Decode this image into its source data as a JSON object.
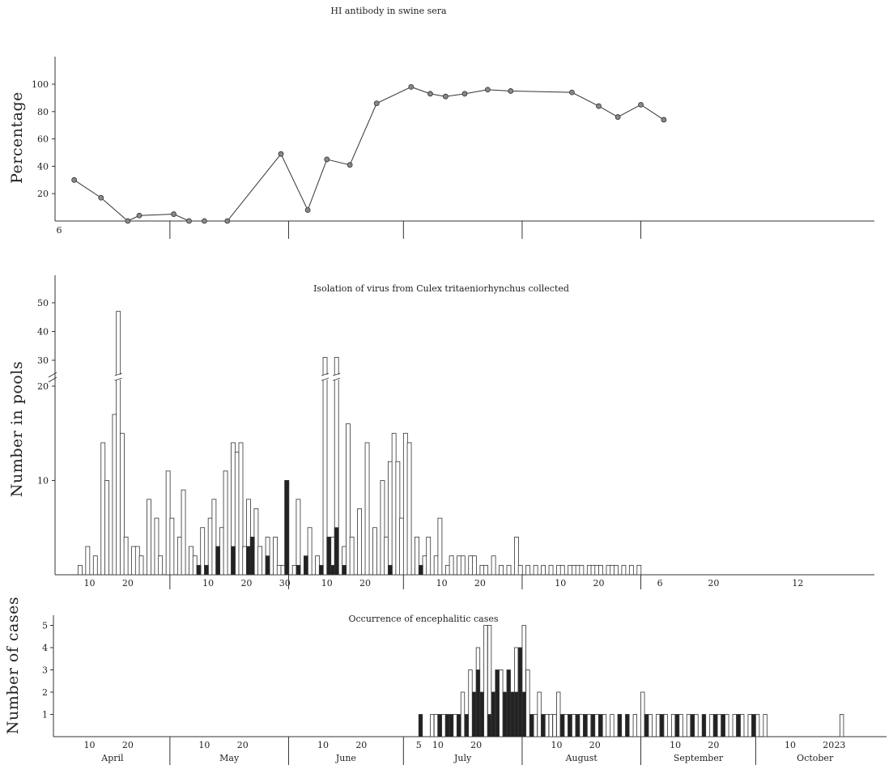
{
  "chart_data": [
    {
      "type": "line",
      "title": "HI antibody in swine sera",
      "ylabel": "Percentage",
      "ylim": [
        0,
        110
      ],
      "yticks": [
        "20",
        "40",
        "60",
        "80",
        "100"
      ],
      "x_start_label": "6",
      "x_day_of_year": [
        96,
        103,
        110,
        113,
        122,
        126,
        130,
        136,
        150,
        157,
        162,
        168,
        175,
        184,
        189,
        193,
        198,
        204,
        210,
        226,
        233,
        238,
        244,
        250
      ],
      "values": [
        30,
        17,
        0,
        4,
        5,
        0,
        0,
        0,
        49,
        8,
        45,
        41,
        86,
        98,
        93,
        91,
        93,
        96,
        95,
        94,
        84,
        76,
        85,
        74
      ],
      "grid": false
    },
    {
      "type": "bar",
      "title": "Isolation of virus from Culex tritaeniorhynchus collected",
      "ylabel": "Number in pools",
      "yticks": [
        "10",
        "20",
        "30",
        "40",
        "50"
      ],
      "axis_break": true,
      "x_tick_labels": [
        "10",
        "20",
        "10",
        "20",
        "30",
        "10",
        "20",
        "10",
        "20",
        "10",
        "20",
        "6",
        "20",
        "12"
      ],
      "series": [
        {
          "name": "",
          "color": "#ffffff",
          "day": [
            97,
            99,
            101,
            103,
            104,
            106,
            107,
            108,
            109,
            111,
            112,
            113,
            115,
            117,
            118,
            120,
            121,
            123,
            124,
            126,
            127,
            129,
            131,
            132,
            134,
            135,
            137,
            138,
            139,
            140,
            141,
            143,
            144,
            146,
            148,
            149,
            150,
            151,
            153,
            154,
            156,
            157,
            159,
            161,
            163,
            164,
            166,
            167,
            168,
            170,
            172,
            174,
            176,
            177,
            178,
            179,
            180,
            181,
            182,
            183,
            185,
            187,
            188,
            190,
            191,
            193,
            194,
            196,
            197,
            199,
            200,
            202,
            203,
            205,
            207,
            209,
            211,
            212,
            214,
            216,
            218,
            220,
            222,
            223,
            225,
            226,
            227,
            228,
            230,
            231,
            232,
            233,
            235,
            236,
            237,
            239,
            241,
            243
          ],
          "values": [
            1,
            3,
            2,
            14,
            10,
            17,
            47,
            15,
            4,
            3,
            3,
            2,
            8,
            6,
            2,
            11,
            6,
            4,
            9,
            3,
            2,
            5,
            6,
            8,
            5,
            11,
            14,
            13,
            14,
            3,
            8,
            7,
            3,
            4,
            4,
            1,
            1,
            10,
            1,
            8,
            1,
            5,
            2,
            31,
            4,
            31,
            3,
            16,
            4,
            7,
            14,
            5,
            10,
            4,
            12,
            15,
            12,
            6,
            15,
            14,
            4,
            2,
            4,
            2,
            6,
            1,
            2,
            2,
            2,
            2,
            2,
            1,
            1,
            2,
            1,
            1,
            4,
            1,
            1,
            1,
            1,
            1,
            1,
            1,
            1,
            1,
            1,
            1,
            1,
            1,
            1,
            1,
            1,
            1,
            1,
            1,
            1,
            1
          ]
        },
        {
          "name": "",
          "color": "#222222",
          "day": [
            128,
            130,
            133,
            137,
            141,
            142,
            146,
            151,
            154,
            156,
            160,
            162,
            163,
            164,
            166,
            178,
            186
          ],
          "values": [
            1,
            1,
            3,
            3,
            3,
            4,
            2,
            10,
            1,
            2,
            1,
            4,
            1,
            5,
            1,
            1,
            1
          ]
        }
      ]
    },
    {
      "type": "bar",
      "title": "Occurrence of encephalitic cases",
      "ylabel": "Number of cases",
      "ylim": [
        0,
        5
      ],
      "yticks": [
        "1",
        "2",
        "3",
        "4",
        "5"
      ],
      "x_tick_labels": [
        "10",
        "20",
        "10",
        "20",
        "10",
        "20",
        "5",
        "10",
        "20",
        "10",
        "20",
        "10",
        "20",
        "10",
        "20",
        "23"
      ],
      "month_labels": [
        "April",
        "May",
        "June",
        "July",
        "August",
        "September",
        "October"
      ],
      "series": [
        {
          "name": "",
          "color": "#ffffff",
          "day": [
            189,
            190,
            192,
            195,
            197,
            199,
            201,
            203,
            204,
            205,
            207,
            209,
            211,
            213,
            214,
            216,
            217,
            219,
            220,
            221,
            222,
            224,
            226,
            228,
            230,
            232,
            234,
            236,
            238,
            240,
            242,
            244,
            246,
            248,
            250,
            252,
            254,
            256,
            258,
            262,
            264,
            266,
            268,
            270,
            272,
            274,
            276,
            296
          ],
          "values": [
            1,
            1,
            1,
            1,
            2,
            3,
            4,
            5,
            5,
            2,
            3,
            1,
            4,
            5,
            3,
            1,
            2,
            1,
            1,
            1,
            2,
            1,
            1,
            1,
            1,
            1,
            1,
            1,
            1,
            1,
            1,
            2,
            1,
            1,
            1,
            1,
            1,
            1,
            1,
            1,
            1,
            1,
            1,
            1,
            1,
            1,
            1,
            1
          ]
        },
        {
          "name": "",
          "color": "#222222",
          "day": [
            186,
            191,
            193,
            194,
            196,
            198,
            200,
            201,
            202,
            204,
            205,
            206,
            208,
            209,
            210,
            211,
            212,
            213,
            215,
            218,
            223,
            225,
            227,
            229,
            231,
            233,
            238,
            240,
            245,
            249,
            253,
            257,
            260,
            263,
            265,
            269,
            273
          ],
          "values": [
            1,
            1,
            1,
            1,
            1,
            1,
            2,
            3,
            2,
            1,
            2,
            3,
            2,
            3,
            2,
            2,
            4,
            2,
            1,
            1,
            1,
            1,
            1,
            1,
            1,
            1,
            1,
            1,
            1,
            1,
            1,
            1,
            1,
            1,
            1,
            1,
            1
          ]
        }
      ]
    }
  ]
}
